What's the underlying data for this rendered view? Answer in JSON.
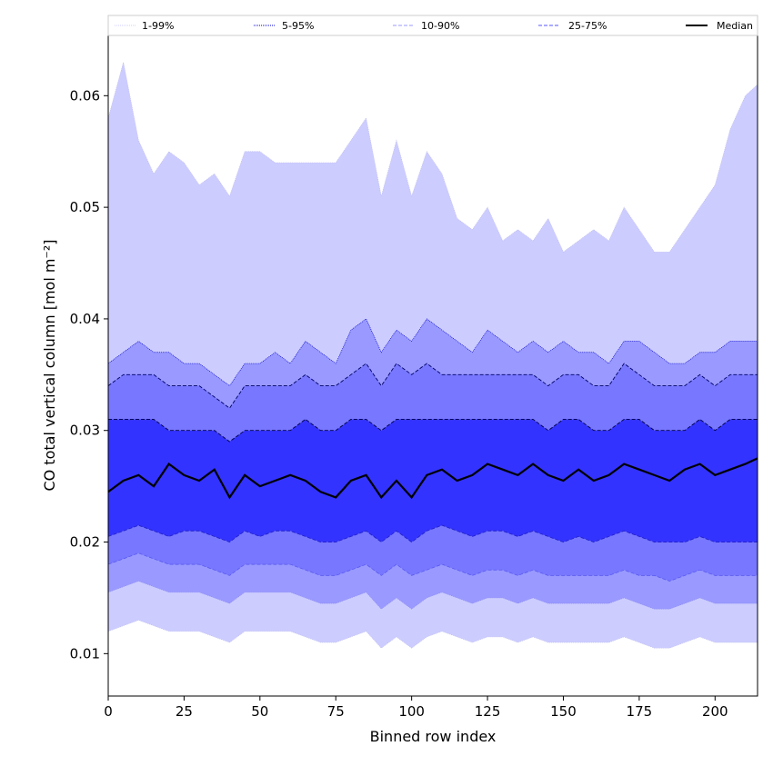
{
  "chart_data": {
    "type": "area",
    "title": "",
    "xlabel": "Binned row index",
    "ylabel": "CO total vertical column [mol m⁻²]",
    "xlim": [
      0,
      214
    ],
    "ylim": [
      0.0062,
      0.0654
    ],
    "x_ticks": [
      0,
      25,
      50,
      75,
      100,
      125,
      150,
      175,
      200
    ],
    "y_ticks": [
      0.01,
      0.02,
      0.03,
      0.04,
      0.05,
      0.06
    ],
    "x_tick_labels": [
      "0",
      "25",
      "50",
      "75",
      "100",
      "125",
      "150",
      "175",
      "200"
    ],
    "y_tick_labels": [
      "0.01",
      "0.02",
      "0.03",
      "0.04",
      "0.05",
      "0.06"
    ],
    "grid": false,
    "legend_position": "top, spanning full width above the axes",
    "legend": [
      {
        "label": "1-99%",
        "style": "dotted",
        "color": "#ccccff"
      },
      {
        "label": "5-95%",
        "style": "dotted",
        "color": "#0000cc"
      },
      {
        "label": "10-90%",
        "style": "dashed",
        "color": "#9999ff"
      },
      {
        "label": "25-75%",
        "style": "dashed",
        "color": "#5555ff"
      },
      {
        "label": "Median",
        "style": "solid",
        "color": "#000000"
      }
    ],
    "x": [
      0,
      5,
      10,
      15,
      20,
      25,
      30,
      35,
      40,
      45,
      50,
      55,
      60,
      65,
      70,
      75,
      80,
      85,
      90,
      95,
      100,
      105,
      110,
      115,
      120,
      125,
      130,
      135,
      140,
      145,
      150,
      155,
      160,
      165,
      170,
      175,
      180,
      185,
      190,
      195,
      200,
      205,
      210,
      214
    ],
    "series": [
      {
        "name": "99%",
        "color": "#ccccff",
        "values": [
          0.058,
          0.063,
          0.056,
          0.053,
          0.055,
          0.054,
          0.052,
          0.053,
          0.051,
          0.055,
          0.055,
          0.054,
          0.054,
          0.054,
          0.054,
          0.054,
          0.056,
          0.058,
          0.051,
          0.056,
          0.051,
          0.055,
          0.053,
          0.049,
          0.048,
          0.05,
          0.047,
          0.048,
          0.047,
          0.049,
          0.046,
          0.047,
          0.048,
          0.047,
          0.05,
          0.048,
          0.046,
          0.046,
          0.048,
          0.05,
          0.052,
          0.057,
          0.06,
          0.061
        ]
      },
      {
        "name": "95%",
        "color": "#9999ff",
        "values": [
          0.036,
          0.037,
          0.038,
          0.037,
          0.037,
          0.036,
          0.036,
          0.035,
          0.034,
          0.036,
          0.036,
          0.037,
          0.036,
          0.038,
          0.037,
          0.036,
          0.039,
          0.04,
          0.037,
          0.039,
          0.038,
          0.04,
          0.039,
          0.038,
          0.037,
          0.039,
          0.038,
          0.037,
          0.038,
          0.037,
          0.038,
          0.037,
          0.037,
          0.036,
          0.038,
          0.038,
          0.037,
          0.036,
          0.036,
          0.037,
          0.037,
          0.038,
          0.038,
          0.038
        ]
      },
      {
        "name": "90%",
        "color": "#7777ff",
        "values": [
          0.034,
          0.035,
          0.035,
          0.035,
          0.034,
          0.034,
          0.034,
          0.033,
          0.032,
          0.034,
          0.034,
          0.034,
          0.034,
          0.035,
          0.034,
          0.034,
          0.035,
          0.036,
          0.034,
          0.036,
          0.035,
          0.036,
          0.035,
          0.035,
          0.035,
          0.035,
          0.035,
          0.035,
          0.035,
          0.034,
          0.035,
          0.035,
          0.034,
          0.034,
          0.036,
          0.035,
          0.034,
          0.034,
          0.034,
          0.035,
          0.034,
          0.035,
          0.035,
          0.035
        ]
      },
      {
        "name": "75%",
        "color": "#3333ff",
        "values": [
          0.031,
          0.031,
          0.031,
          0.031,
          0.03,
          0.03,
          0.03,
          0.03,
          0.029,
          0.03,
          0.03,
          0.03,
          0.03,
          0.031,
          0.03,
          0.03,
          0.031,
          0.031,
          0.03,
          0.031,
          0.031,
          0.031,
          0.031,
          0.031,
          0.031,
          0.031,
          0.031,
          0.031,
          0.031,
          0.03,
          0.031,
          0.031,
          0.03,
          0.03,
          0.031,
          0.031,
          0.03,
          0.03,
          0.03,
          0.031,
          0.03,
          0.031,
          0.031,
          0.031
        ]
      },
      {
        "name": "Median",
        "color": "#000000",
        "values": [
          0.0245,
          0.0255,
          0.026,
          0.025,
          0.027,
          0.026,
          0.0255,
          0.0265,
          0.024,
          0.026,
          0.025,
          0.0255,
          0.026,
          0.0255,
          0.0245,
          0.024,
          0.0255,
          0.026,
          0.024,
          0.0255,
          0.024,
          0.026,
          0.0265,
          0.0255,
          0.026,
          0.027,
          0.0265,
          0.026,
          0.027,
          0.026,
          0.0255,
          0.0265,
          0.0255,
          0.026,
          0.027,
          0.0265,
          0.026,
          0.0255,
          0.0265,
          0.027,
          0.026,
          0.0265,
          0.027,
          0.0275
        ]
      },
      {
        "name": "25%",
        "color": "#3333ff",
        "values": [
          0.0205,
          0.021,
          0.0215,
          0.021,
          0.0205,
          0.021,
          0.021,
          0.0205,
          0.02,
          0.021,
          0.0205,
          0.021,
          0.021,
          0.0205,
          0.02,
          0.02,
          0.0205,
          0.021,
          0.02,
          0.021,
          0.02,
          0.021,
          0.0215,
          0.021,
          0.0205,
          0.021,
          0.021,
          0.0205,
          0.021,
          0.0205,
          0.02,
          0.0205,
          0.02,
          0.0205,
          0.021,
          0.0205,
          0.02,
          0.02,
          0.02,
          0.0205,
          0.02,
          0.02,
          0.02,
          0.02
        ]
      },
      {
        "name": "10%",
        "color": "#7777ff",
        "values": [
          0.018,
          0.0185,
          0.019,
          0.0185,
          0.018,
          0.018,
          0.018,
          0.0175,
          0.017,
          0.018,
          0.018,
          0.018,
          0.018,
          0.0175,
          0.017,
          0.017,
          0.0175,
          0.018,
          0.017,
          0.018,
          0.017,
          0.0175,
          0.018,
          0.0175,
          0.017,
          0.0175,
          0.0175,
          0.017,
          0.0175,
          0.017,
          0.017,
          0.017,
          0.017,
          0.017,
          0.0175,
          0.017,
          0.017,
          0.0165,
          0.017,
          0.0175,
          0.017,
          0.017,
          0.017,
          0.017
        ]
      },
      {
        "name": "5%",
        "color": "#9999ff",
        "values": [
          0.0155,
          0.016,
          0.0165,
          0.016,
          0.0155,
          0.0155,
          0.0155,
          0.015,
          0.0145,
          0.0155,
          0.0155,
          0.0155,
          0.0155,
          0.015,
          0.0145,
          0.0145,
          0.015,
          0.0155,
          0.014,
          0.015,
          0.014,
          0.015,
          0.0155,
          0.015,
          0.0145,
          0.015,
          0.015,
          0.0145,
          0.015,
          0.0145,
          0.0145,
          0.0145,
          0.0145,
          0.0145,
          0.015,
          0.0145,
          0.014,
          0.014,
          0.0145,
          0.015,
          0.0145,
          0.0145,
          0.0145,
          0.0145
        ]
      },
      {
        "name": "1%",
        "color": "#ccccff",
        "values": [
          0.012,
          0.0125,
          0.013,
          0.0125,
          0.012,
          0.012,
          0.012,
          0.0115,
          0.011,
          0.012,
          0.012,
          0.012,
          0.012,
          0.0115,
          0.011,
          0.011,
          0.0115,
          0.012,
          0.0105,
          0.0115,
          0.0105,
          0.0115,
          0.012,
          0.0115,
          0.011,
          0.0115,
          0.0115,
          0.011,
          0.0115,
          0.011,
          0.011,
          0.011,
          0.011,
          0.011,
          0.0115,
          0.011,
          0.0105,
          0.0105,
          0.011,
          0.0115,
          0.011,
          0.011,
          0.011,
          0.011
        ]
      }
    ]
  }
}
